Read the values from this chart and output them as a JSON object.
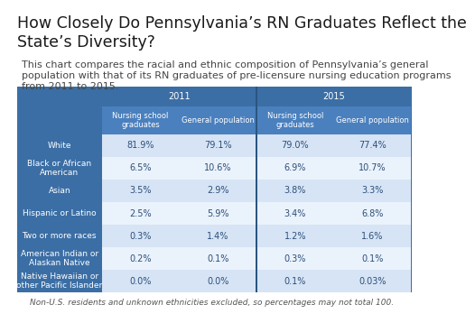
{
  "title": "How Closely Do Pennsylvania’s RN Graduates Reflect the\nState’s Diversity?",
  "subtitle": "This chart compares the racial and ethnic composition of Pennsylvania’s general\npopulation with that of its RN graduates of pre-licensure nursing education programs\nfrom 2011 to 2015.",
  "footnote": "Non-U.S. residents and unknown ethnicities excluded, so percentages may not total 100.",
  "col_headers_year": [
    "2011",
    "2015"
  ],
  "col_headers_sub": [
    "Nursing school\ngraduates",
    "General population",
    "Nursing school\ngraduates",
    "General population"
  ],
  "row_labels": [
    "White",
    "Black or African\nAmerican",
    "Asian",
    "Hispanic or Latino",
    "Two or more races",
    "American Indian or\nAlaskan Native",
    "Native Hawaiian or\nother Pacific Islander"
  ],
  "data": [
    [
      "81.9%",
      "79.1%",
      "79.0%",
      "77.4%"
    ],
    [
      "6.5%",
      "10.6%",
      "6.9%",
      "10.7%"
    ],
    [
      "3.5%",
      "2.9%",
      "3.8%",
      "3.3%"
    ],
    [
      "2.5%",
      "5.9%",
      "3.4%",
      "6.8%"
    ],
    [
      "0.3%",
      "1.4%",
      "1.2%",
      "1.6%"
    ],
    [
      "0.2%",
      "0.1%",
      "0.3%",
      "0.1%"
    ],
    [
      "0.0%",
      "0.0%",
      "0.1%",
      "0.03%"
    ]
  ],
  "color_header_dark": "#3B6EA5",
  "color_header_mid": "#4A80BE",
  "color_row_label": "#3B6EA5",
  "color_data_light": "#D6E4F5",
  "color_data_white": "#EAF2FB",
  "color_divider": "#2A5580",
  "color_text_header": "#FFFFFF",
  "color_text_label": "#FFFFFF",
  "color_text_data": "#2C4F7A",
  "title_fontsize": 12.5,
  "subtitle_fontsize": 8.0,
  "footnote_fontsize": 6.5,
  "header_fontsize": 7.0,
  "label_fontsize": 6.5,
  "data_fontsize": 7.0
}
